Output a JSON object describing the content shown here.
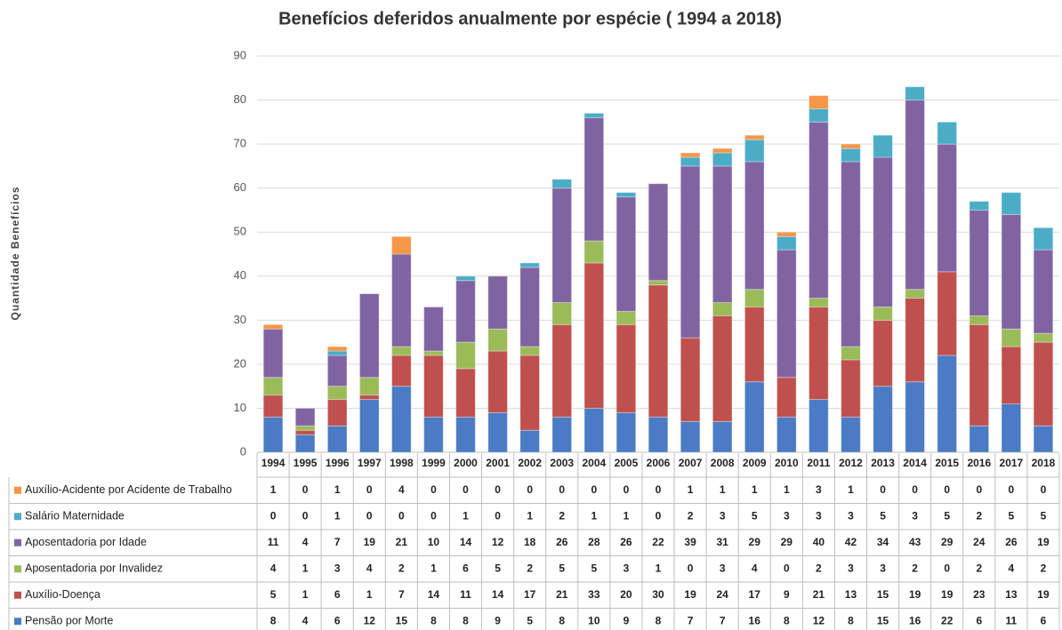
{
  "chart_data": {
    "type": "stacked_bar",
    "title": "Benefícios deferidos anualmente por espécie ( 1994 a 2018)",
    "y_label": "Quantidade Benefícios",
    "categories": [
      "1994",
      "1995",
      "1996",
      "1997",
      "1998",
      "1999",
      "2000",
      "2001",
      "2002",
      "2003",
      "2004",
      "2005",
      "2006",
      "2007",
      "2008",
      "2009",
      "2010",
      "2011",
      "2012",
      "2013",
      "2014",
      "2015",
      "2016",
      "2017",
      "2018"
    ],
    "series": [
      {
        "name": "Pensão por Morte",
        "color": "#4a7bc4",
        "values": [
          8,
          4,
          6,
          12,
          15,
          8,
          8,
          9,
          5,
          8,
          10,
          9,
          8,
          7,
          7,
          16,
          8,
          12,
          8,
          15,
          16,
          22,
          6,
          11,
          6
        ]
      },
      {
        "name": "Auxílio-Doença",
        "color": "#c0504d",
        "values": [
          5,
          1,
          6,
          1,
          7,
          14,
          11,
          14,
          17,
          21,
          33,
          20,
          30,
          19,
          24,
          17,
          9,
          21,
          13,
          15,
          19,
          19,
          23,
          13,
          19
        ]
      },
      {
        "name": "Aposentadoria por Invalidez",
        "color": "#9bbb59",
        "values": [
          4,
          1,
          3,
          4,
          2,
          1,
          6,
          5,
          2,
          5,
          5,
          3,
          1,
          0,
          3,
          4,
          0,
          2,
          3,
          3,
          2,
          0,
          2,
          4,
          2
        ]
      },
      {
        "name": "Aposentadoria por Idade",
        "color": "#8064a2",
        "values": [
          11,
          4,
          7,
          19,
          21,
          10,
          14,
          12,
          18,
          26,
          28,
          26,
          22,
          39,
          31,
          29,
          29,
          40,
          42,
          34,
          43,
          29,
          24,
          26,
          19
        ]
      },
      {
        "name": "Salário Maternidade",
        "color": "#4bacc6",
        "values": [
          0,
          0,
          1,
          0,
          0,
          0,
          1,
          0,
          1,
          2,
          1,
          1,
          0,
          2,
          3,
          5,
          3,
          3,
          3,
          5,
          3,
          5,
          2,
          5,
          5
        ]
      },
      {
        "name": "Auxílio-Acidente por Acidente de Trabalho",
        "color": "#f79646",
        "values": [
          1,
          0,
          1,
          0,
          4,
          0,
          0,
          0,
          0,
          0,
          0,
          0,
          0,
          1,
          1,
          1,
          1,
          3,
          1,
          0,
          0,
          0,
          0,
          0,
          0
        ]
      }
    ],
    "ylim": [
      0,
      90
    ],
    "yticks": [
      0,
      10,
      20,
      30,
      40,
      50,
      60,
      70,
      80,
      90
    ],
    "grid": true
  }
}
